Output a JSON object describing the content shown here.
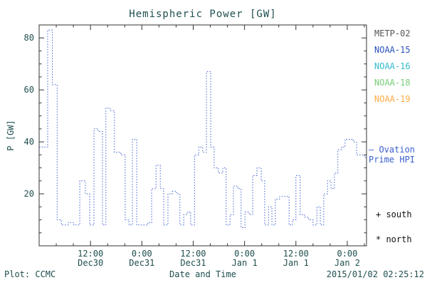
{
  "colors": {
    "axis": "#333333",
    "text": "#1f4e4e",
    "series": "#3a5fcd"
  },
  "legend": [
    {
      "label": "METP-02",
      "color": "#555555"
    },
    {
      "label": "NOAA-15",
      "color": "#2a52be"
    },
    {
      "label": "NOAA-16",
      "color": "#33bbcc"
    },
    {
      "label": "NOAA-18",
      "color": "#77cc77"
    },
    {
      "label": "NOAA-19",
      "color": "#ffaa44"
    }
  ],
  "annotations": {
    "ovation": [
      "— Ovation",
      "Prime HPI"
    ],
    "south": "+ south",
    "north": "* north"
  },
  "footer": {
    "left": "Plot: CCMC",
    "right": "2015/01/02 02:25:12"
  },
  "chart_data": {
    "type": "line",
    "step": true,
    "line_style": "dotted",
    "series_color": "#3a5fcd",
    "title": "Hemispheric Power [GW]",
    "xlabel": "Date and Time",
    "ylabel": "P [GW]",
    "x_unit": "hours since Dec 30 00:00",
    "xlim": [
      0,
      76.5
    ],
    "ylim": [
      0,
      85
    ],
    "yticks": [
      20,
      40,
      60,
      80
    ],
    "xticks": [
      {
        "t": 12,
        "time": "12:00",
        "date": "Dec30"
      },
      {
        "t": 24,
        "time": "0:00",
        "date": "Dec31"
      },
      {
        "t": 36,
        "time": "12:00",
        "date": "Dec31"
      },
      {
        "t": 48,
        "time": "0:00",
        "date": "Jan 1"
      },
      {
        "t": 60,
        "time": "12:00",
        "date": "Jan 1"
      },
      {
        "t": 72,
        "time": "0:00",
        "date": "Jan 2"
      }
    ],
    "points": [
      [
        0.0,
        38
      ],
      [
        2.0,
        83
      ],
      [
        3.1,
        62
      ],
      [
        4.2,
        10
      ],
      [
        5.2,
        8
      ],
      [
        6.8,
        9
      ],
      [
        8.1,
        8
      ],
      [
        9.5,
        25
      ],
      [
        10.8,
        20
      ],
      [
        11.8,
        8
      ],
      [
        12.8,
        45
      ],
      [
        13.8,
        44
      ],
      [
        14.8,
        8
      ],
      [
        15.6,
        53
      ],
      [
        16.6,
        52
      ],
      [
        17.6,
        36
      ],
      [
        19.1,
        35
      ],
      [
        20.1,
        10
      ],
      [
        21.0,
        8
      ],
      [
        21.8,
        41
      ],
      [
        22.8,
        8
      ],
      [
        25.4,
        9
      ],
      [
        26.3,
        22
      ],
      [
        27.3,
        31
      ],
      [
        28.3,
        22
      ],
      [
        29.1,
        8
      ],
      [
        30.1,
        20
      ],
      [
        31.1,
        21
      ],
      [
        32.1,
        20
      ],
      [
        32.9,
        8
      ],
      [
        33.8,
        12
      ],
      [
        34.6,
        13
      ],
      [
        35.4,
        8
      ],
      [
        36.3,
        35
      ],
      [
        37.3,
        38
      ],
      [
        38.2,
        36
      ],
      [
        39.1,
        67
      ],
      [
        40.1,
        38
      ],
      [
        40.9,
        30
      ],
      [
        41.9,
        28
      ],
      [
        42.9,
        30
      ],
      [
        43.7,
        8
      ],
      [
        44.6,
        12
      ],
      [
        45.4,
        23
      ],
      [
        46.4,
        22
      ],
      [
        47.2,
        7
      ],
      [
        48.1,
        13
      ],
      [
        49.1,
        12
      ],
      [
        49.9,
        27
      ],
      [
        50.9,
        30
      ],
      [
        51.9,
        25
      ],
      [
        52.7,
        8
      ],
      [
        53.6,
        15
      ],
      [
        54.4,
        8
      ],
      [
        55.2,
        18
      ],
      [
        56.2,
        19
      ],
      [
        57.4,
        19
      ],
      [
        58.4,
        8
      ],
      [
        59.2,
        10
      ],
      [
        60.0,
        27
      ],
      [
        61.0,
        12
      ],
      [
        62.0,
        11
      ],
      [
        63.0,
        10
      ],
      [
        64.0,
        8
      ],
      [
        64.9,
        15
      ],
      [
        65.7,
        8
      ],
      [
        66.5,
        20
      ],
      [
        67.4,
        25
      ],
      [
        68.2,
        22
      ],
      [
        69.0,
        28
      ],
      [
        69.8,
        37
      ],
      [
        70.7,
        38
      ],
      [
        71.5,
        41
      ],
      [
        72.5,
        41
      ],
      [
        73.4,
        40
      ],
      [
        74.2,
        35
      ],
      [
        75.2,
        35
      ],
      [
        76.0,
        34
      ]
    ]
  }
}
